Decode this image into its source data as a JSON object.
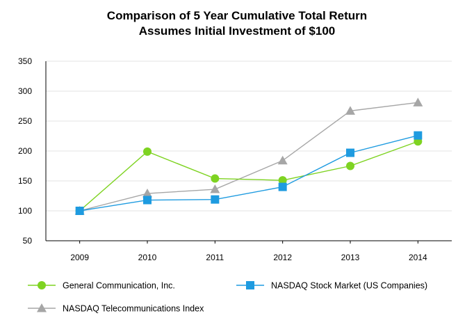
{
  "chart_data": {
    "type": "line",
    "title": "Comparison of 5 Year Cumulative Total Return",
    "subtitle": "Assumes Initial Investment of $100",
    "categories": [
      "2009",
      "2010",
      "2011",
      "2012",
      "2013",
      "2014"
    ],
    "ylim": [
      50,
      350
    ],
    "yticks": [
      50,
      100,
      150,
      200,
      250,
      300,
      350
    ],
    "grid": true,
    "legend_position": "bottom",
    "series": [
      {
        "name": "General Communication, Inc.",
        "marker": "circle",
        "color": "#7ed321",
        "values": [
          100,
          199,
          154,
          151,
          175,
          216
        ]
      },
      {
        "name": "NASDAQ Stock Market (US Companies)",
        "marker": "square",
        "color": "#1e9be0",
        "values": [
          100,
          118,
          119,
          140,
          197,
          226
        ]
      },
      {
        "name": "NASDAQ Telecommunications Index",
        "marker": "triangle",
        "color": "#a6a6a6",
        "values": [
          100,
          129,
          136,
          184,
          267,
          281
        ]
      }
    ]
  }
}
